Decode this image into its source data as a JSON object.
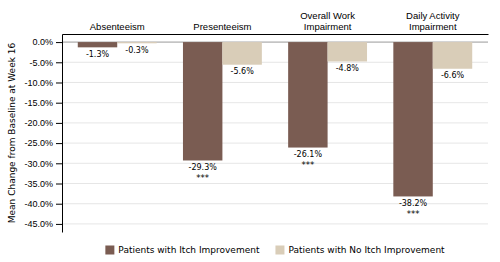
{
  "chart_data": {
    "type": "bar",
    "categories": [
      "Absenteeism",
      "Presenteeism",
      "Overall Work\nImpairment",
      "Daily Activity\nImpairment"
    ],
    "series": [
      {
        "name": "Patients with Itch Improvement",
        "color": "#7a5c52",
        "values": [
          -1.3,
          -29.3,
          -26.1,
          -38.2
        ],
        "value_labels": [
          "-1.3%",
          "-29.3%",
          "-26.1%",
          "-38.2%"
        ],
        "annotations": [
          null,
          "***",
          "***",
          "***"
        ]
      },
      {
        "name": "Patients with No Itch Improvement",
        "color": "#d9cdb8",
        "values": [
          -0.3,
          -5.6,
          -4.8,
          -6.6
        ],
        "value_labels": [
          "-0.3%",
          "-5.6%",
          "-4.8%",
          "-6.6%"
        ]
      }
    ],
    "ylabel": "Mean Change from Baseline at Week 16",
    "ylim": [
      -47,
      2
    ],
    "yticks": [
      {
        "value": 0,
        "label": "0.0%"
      },
      {
        "value": -5,
        "label": "-5.0%"
      },
      {
        "value": -10,
        "label": "-10.0%"
      },
      {
        "value": -15,
        "label": "-15.0%"
      },
      {
        "value": -20,
        "label": "-20.0%"
      },
      {
        "value": -25,
        "label": "-25.0%"
      },
      {
        "value": -30,
        "label": "-30.0%"
      },
      {
        "value": -35,
        "label": "-35.0%"
      },
      {
        "value": -40,
        "label": "-40.0%"
      },
      {
        "value": -45,
        "label": "-45.0%"
      }
    ],
    "grid": true,
    "data_labels": true,
    "legend": "bottom"
  }
}
